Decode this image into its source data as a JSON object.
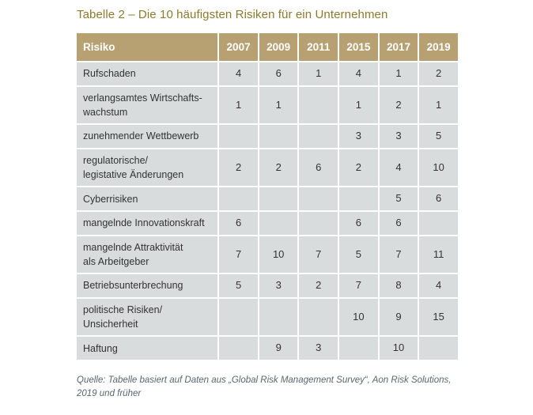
{
  "title": "Tabelle 2 – Die 10 häufigsten Risiken für ein Unternehmen",
  "colors": {
    "header_background": "#b7a172",
    "header_text": "#ffffff",
    "cell_background": "#d9dcdd",
    "title_text": "#8c7a2d",
    "body_text": "#333333",
    "source_text": "#5b656e",
    "page_background": "#ffffff"
  },
  "table": {
    "header": {
      "risk_label": "Risiko",
      "years": [
        "2007",
        "2009",
        "2011",
        "2015",
        "2017",
        "2019"
      ]
    },
    "rows": [
      {
        "label": "Rufschaden",
        "values": [
          "4",
          "6",
          "1",
          "4",
          "1",
          "2"
        ]
      },
      {
        "label": "verlangsamtes Wirtschafts-\nwachstum",
        "values": [
          "1",
          "1",
          "",
          "1",
          "2",
          "1"
        ]
      },
      {
        "label": "zunehmender Wettbewerb",
        "values": [
          "",
          "",
          "",
          "3",
          "3",
          "5"
        ]
      },
      {
        "label": "regulatorische/\nlegistative Änderungen",
        "values": [
          "2",
          "2",
          "6",
          "2",
          "4",
          "10"
        ]
      },
      {
        "label": "Cyberrisiken",
        "values": [
          "",
          "",
          "",
          "",
          "5",
          "6"
        ]
      },
      {
        "label": "mangelnde Innovationskraft",
        "values": [
          "6",
          "",
          "",
          "6",
          "6",
          ""
        ]
      },
      {
        "label": "mangelnde Attraktivität\nals Arbeitgeber",
        "values": [
          "7",
          "10",
          "7",
          "5",
          "7",
          "11"
        ]
      },
      {
        "label": "Betriebsunterbrechung",
        "values": [
          "5",
          "3",
          "2",
          "7",
          "8",
          "4"
        ]
      },
      {
        "label": "politische Risiken/\nUnsicherheit",
        "values": [
          "",
          "",
          "",
          "10",
          "9",
          "15"
        ]
      },
      {
        "label": "Haftung",
        "values": [
          "",
          "9",
          "3",
          "",
          "10",
          ""
        ]
      }
    ]
  },
  "source": "Quelle: Tabelle basiert auf Daten aus „Global Risk Management Survey“, Aon Risk Solutions,\n2019 und früher"
}
